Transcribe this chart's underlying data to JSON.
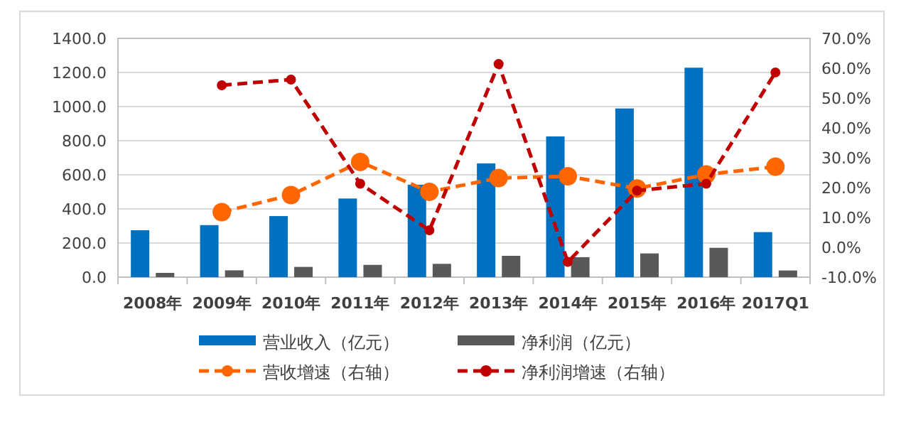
{
  "chart_data": {
    "type": "bar",
    "categories": [
      "2008年",
      "2009年",
      "2010年",
      "2011年",
      "2012年",
      "2013年",
      "2014年",
      "2015年",
      "2016年",
      "2017Q1"
    ],
    "series": [
      {
        "name": "营业收入（亿元）",
        "color": "#0070c0",
        "values": [
          275,
          305,
          358,
          461,
          542,
          667,
          825,
          989,
          1228,
          264
        ]
      },
      {
        "name": "净利润（亿元）",
        "color": "#595959",
        "values": [
          25,
          40,
          60,
          72,
          78,
          125,
          117,
          139,
          172,
          39
        ]
      },
      {
        "name": "营收增速（右轴）",
        "type": "line",
        "axis": "y2",
        "color": "#ff6600",
        "marker": "circle",
        "line_style": "dashed",
        "values": [
          null,
          11.8,
          17.5,
          28.6,
          18.6,
          23.2,
          23.8,
          19.7,
          24.4,
          27.0
        ]
      },
      {
        "name": "净利润增速（右轴）",
        "type": "line",
        "axis": "y2",
        "color": "#c00000",
        "marker": "circle",
        "line_style": "dashed",
        "values": [
          null,
          54.3,
          56.2,
          21.3,
          5.7,
          61.4,
          -4.9,
          19.0,
          21.3,
          58.6
        ]
      }
    ],
    "ylim": [
      0,
      1400
    ],
    "yticks": [
      {
        "value": 0,
        "label": "0.0"
      },
      {
        "value": 200,
        "label": "200.0"
      },
      {
        "value": 400,
        "label": "400.0"
      },
      {
        "value": 600,
        "label": "600.0"
      },
      {
        "value": 800,
        "label": "800.0"
      },
      {
        "value": 1000,
        "label": "1000.0"
      },
      {
        "value": 1200,
        "label": "1200.0"
      },
      {
        "value": 1400,
        "label": "1400.0"
      }
    ],
    "y2lim": [
      -10,
      70
    ],
    "y2ticks": [
      {
        "value": -10,
        "label": "-10.0%"
      },
      {
        "value": 0,
        "label": "0.0%"
      },
      {
        "value": 10,
        "label": "10.0%"
      },
      {
        "value": 20,
        "label": "20.0%"
      },
      {
        "value": 30,
        "label": "30.0%"
      },
      {
        "value": 40,
        "label": "40.0%"
      },
      {
        "value": 50,
        "label": "50.0%"
      },
      {
        "value": 60,
        "label": "60.0%"
      },
      {
        "value": 70,
        "label": "70.0%"
      }
    ],
    "grid": "y",
    "legend": "bottom"
  }
}
